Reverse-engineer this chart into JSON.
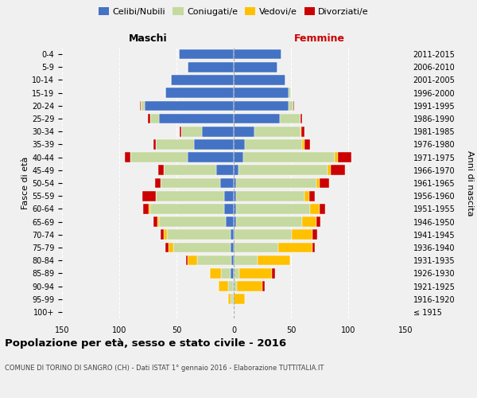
{
  "age_groups": [
    "100+",
    "95-99",
    "90-94",
    "85-89",
    "80-84",
    "75-79",
    "70-74",
    "65-69",
    "60-64",
    "55-59",
    "50-54",
    "45-49",
    "40-44",
    "35-39",
    "30-34",
    "25-29",
    "20-24",
    "15-19",
    "10-14",
    "5-9",
    "0-4"
  ],
  "birth_years": [
    "≤ 1915",
    "1916-1920",
    "1921-1925",
    "1926-1930",
    "1931-1935",
    "1936-1940",
    "1941-1945",
    "1946-1950",
    "1951-1955",
    "1956-1960",
    "1961-1965",
    "1966-1970",
    "1971-1975",
    "1976-1980",
    "1981-1985",
    "1986-1990",
    "1991-1995",
    "1996-2000",
    "2001-2005",
    "2006-2010",
    "2011-2015"
  ],
  "maschi": {
    "celibi": [
      0,
      1,
      1,
      3,
      2,
      3,
      3,
      7,
      8,
      8,
      12,
      15,
      40,
      35,
      28,
      65,
      78,
      60,
      55,
      40,
      48
    ],
    "coniugati": [
      0,
      2,
      4,
      8,
      30,
      50,
      55,
      58,
      65,
      60,
      52,
      46,
      50,
      33,
      18,
      8,
      3,
      0,
      0,
      0,
      0
    ],
    "vedovi": [
      0,
      2,
      8,
      10,
      8,
      4,
      3,
      2,
      1,
      0,
      0,
      0,
      0,
      0,
      0,
      0,
      0,
      0,
      0,
      0,
      0
    ],
    "divorziati": [
      0,
      0,
      0,
      0,
      2,
      3,
      3,
      3,
      5,
      12,
      5,
      5,
      5,
      2,
      1,
      2,
      1,
      0,
      0,
      0,
      0
    ]
  },
  "femmine": {
    "nubili": [
      0,
      0,
      0,
      0,
      1,
      1,
      1,
      2,
      2,
      2,
      2,
      4,
      8,
      10,
      18,
      40,
      48,
      48,
      45,
      38,
      42
    ],
    "coniugate": [
      0,
      0,
      3,
      5,
      20,
      38,
      50,
      58,
      65,
      60,
      70,
      78,
      80,
      50,
      40,
      18,
      4,
      2,
      0,
      0,
      0
    ],
    "vedove": [
      0,
      10,
      22,
      28,
      28,
      30,
      18,
      12,
      8,
      4,
      3,
      3,
      3,
      2,
      1,
      0,
      0,
      0,
      0,
      0,
      0
    ],
    "divorziate": [
      0,
      0,
      2,
      3,
      0,
      2,
      4,
      4,
      5,
      5,
      8,
      12,
      12,
      5,
      3,
      2,
      1,
      0,
      0,
      0,
      0
    ]
  },
  "colors": {
    "celibi": "#4472C4",
    "coniugati": "#c5d9a0",
    "vedovi": "#ffc000",
    "divorziati": "#cc0000"
  },
  "title": "Popolazione per età, sesso e stato civile - 2016",
  "subtitle": "COMUNE DI TORINO DI SANGRO (CH) - Dati ISTAT 1° gennaio 2016 - Elaborazione TUTTITALIA.IT",
  "label_maschi": "Maschi",
  "label_femmine": "Femmine",
  "ylabel_left": "Fasce di età",
  "ylabel_right": "Anni di nascita",
  "xlim": 150,
  "legend_labels": [
    "Celibi/Nubili",
    "Coniugati/e",
    "Vedovi/e",
    "Divorziati/e"
  ],
  "bg_color": "#f0f0f0"
}
